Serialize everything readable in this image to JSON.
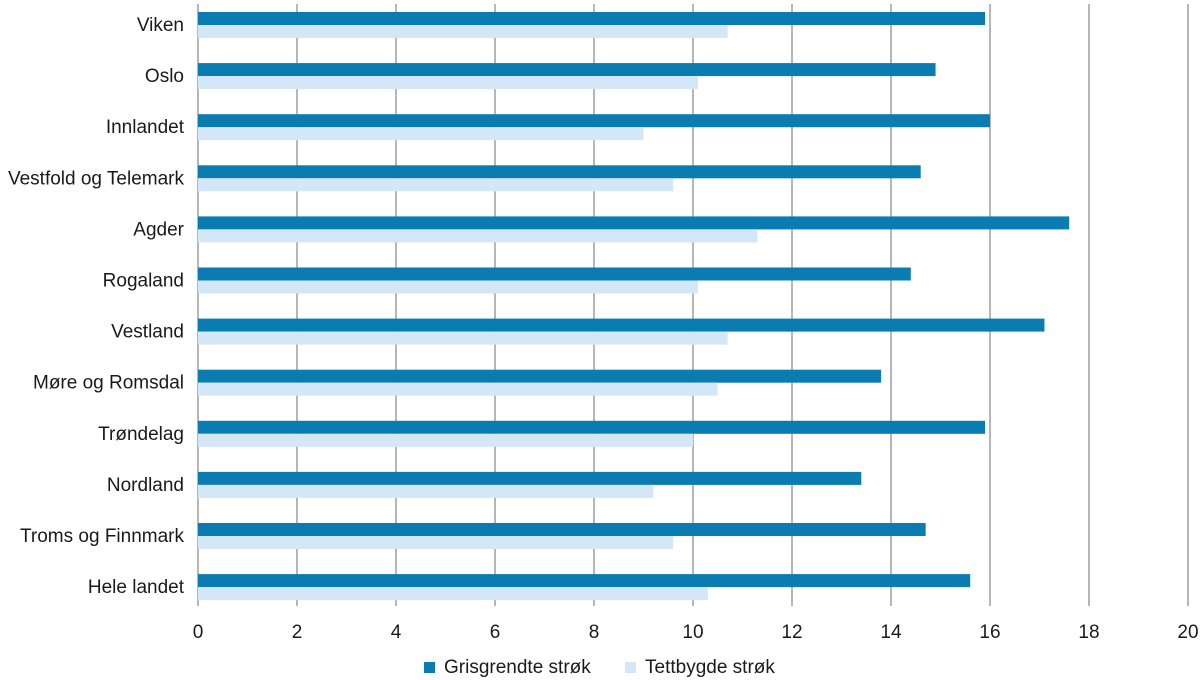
{
  "chart_data": {
    "type": "bar",
    "orientation": "horizontal",
    "categories": [
      "Viken",
      "Oslo",
      "Innlandet",
      "Vestfold og Telemark",
      "Agder",
      "Rogaland",
      "Vestland",
      "Møre og Romsdal",
      "Trøndelag",
      "Nordland",
      "Troms og Finnmark",
      "Hele landet"
    ],
    "series": [
      {
        "name": "Grisgrendte strøk",
        "color": "#0a7cb2",
        "values": [
          15.9,
          14.9,
          16.0,
          14.6,
          17.6,
          14.4,
          17.1,
          13.8,
          15.9,
          13.4,
          14.7,
          15.6
        ]
      },
      {
        "name": "Tettbygde strøk",
        "color": "#d3e7f6",
        "values": [
          10.7,
          10.1,
          9.0,
          9.6,
          11.3,
          10.1,
          10.7,
          10.5,
          10.0,
          9.2,
          9.6,
          10.3
        ]
      }
    ],
    "xlim": [
      0,
      20
    ],
    "xticks": [
      "0",
      "2",
      "4",
      "6",
      "8",
      "10",
      "12",
      "14",
      "16",
      "18",
      "20"
    ],
    "grid": "vertical",
    "gridColor": "#6e6e6e",
    "legend": "bottom-center",
    "title": "",
    "xlabel": "",
    "ylabel": ""
  }
}
